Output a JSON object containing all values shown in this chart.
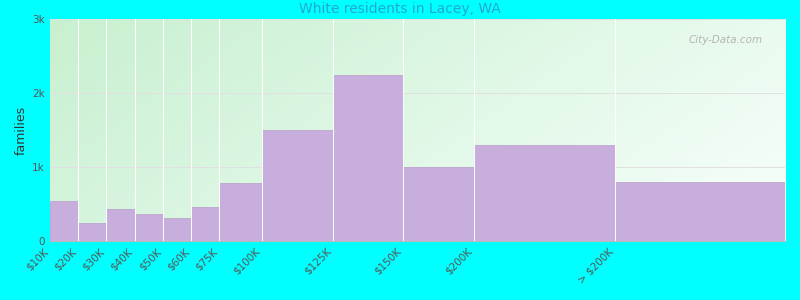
{
  "subtitle": "White residents in Lacey, WA",
  "ylabel": "families",
  "background_color": "#00FFFF",
  "bar_color": "#c8aedd",
  "bar_edge_color": "#b89ec8",
  "categories": [
    "$10K",
    "$20K",
    "$30K",
    "$40K",
    "$50K",
    "$60K",
    "$75K",
    "$100K",
    "$125K",
    "$150K",
    "$200K",
    "> $200K"
  ],
  "values": [
    550,
    250,
    430,
    370,
    320,
    460,
    780,
    1500,
    2250,
    1000,
    1300,
    800
  ],
  "bin_lefts": [
    0,
    10,
    20,
    30,
    40,
    50,
    60,
    75,
    100,
    125,
    150,
    200
  ],
  "bin_rights": [
    10,
    20,
    30,
    40,
    50,
    60,
    75,
    100,
    125,
    150,
    200,
    260
  ],
  "ylim": [
    0,
    3000
  ],
  "yticks": [
    0,
    1000,
    2000,
    3000
  ],
  "ytick_labels": [
    "0",
    "1k",
    "2k",
    "3k"
  ],
  "title_fontsize": 14,
  "subtitle_fontsize": 10,
  "ylabel_fontsize": 9,
  "tick_fontsize": 7.5,
  "watermark_text": "City-Data.com",
  "watermark_color": "#aaaaaa",
  "grid_color": "#e0e0e0",
  "gradient_top_left": "#c8f0d0",
  "gradient_bottom_right": "#f0fff8"
}
